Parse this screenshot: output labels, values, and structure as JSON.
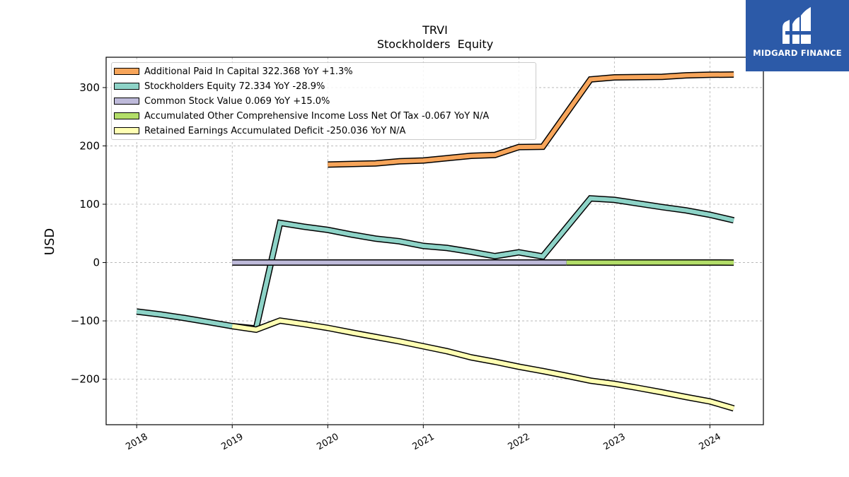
{
  "chart_data": {
    "type": "line",
    "title": "TRVI",
    "subtitle": "Stockholders  Equity",
    "ylabel": "USD",
    "xlabel": "",
    "xlim": [
      2017.68,
      2024.56
    ],
    "ylim": [
      -278,
      352
    ],
    "x_ticks": [
      2018,
      2019,
      2020,
      2021,
      2022,
      2023,
      2024
    ],
    "x_tick_labels": [
      "2018",
      "2019",
      "2020",
      "2021",
      "2022",
      "2023",
      "2024"
    ],
    "y_ticks": [
      -200,
      -100,
      0,
      100,
      200,
      300
    ],
    "y_tick_labels": [
      "−200",
      "−100",
      "0",
      "100",
      "200",
      "300"
    ],
    "grid": true,
    "legend_position": "top-left",
    "series": [
      {
        "name": "Additional Paid In Capital",
        "legend": "Additional Paid In Capital  322.368 YoY +1.3%",
        "color": "#f7a55a",
        "points": [
          [
            2020.0,
            168.0
          ],
          [
            2020.5,
            170.0
          ],
          [
            2020.75,
            173.5
          ],
          [
            2021.0,
            175.0
          ],
          [
            2021.25,
            179.0
          ],
          [
            2021.5,
            183.0
          ],
          [
            2021.75,
            184.5
          ],
          [
            2022.0,
            198.0
          ],
          [
            2022.25,
            198.5
          ],
          [
            2022.75,
            314.0
          ],
          [
            2023.0,
            317.5
          ],
          [
            2023.5,
            318.5
          ],
          [
            2023.75,
            321.0
          ],
          [
            2024.0,
            322.0
          ],
          [
            2024.25,
            322.368
          ]
        ]
      },
      {
        "name": "Stockholders Equity",
        "legend": "Stockholders Equity  72.334 YoY -28.9%",
        "color": "#8dd3c7",
        "points": [
          [
            2018.0,
            -84.0
          ],
          [
            2018.25,
            -89.0
          ],
          [
            2018.5,
            -95.0
          ],
          [
            2018.75,
            -102.0
          ],
          [
            2019.0,
            -109.0
          ],
          [
            2019.25,
            -113.0
          ],
          [
            2019.5,
            68.0
          ],
          [
            2019.75,
            61.5
          ],
          [
            2020.0,
            56.0
          ],
          [
            2020.25,
            48.0
          ],
          [
            2020.5,
            41.0
          ],
          [
            2020.75,
            36.5
          ],
          [
            2021.0,
            28.5
          ],
          [
            2021.25,
            25.0
          ],
          [
            2021.5,
            18.5
          ],
          [
            2021.75,
            11.0
          ],
          [
            2022.0,
            17.5
          ],
          [
            2022.25,
            10.5
          ],
          [
            2022.75,
            110.0
          ],
          [
            2023.0,
            107.5
          ],
          [
            2023.5,
            95.0
          ],
          [
            2023.75,
            89.5
          ],
          [
            2024.0,
            82.0
          ],
          [
            2024.25,
            72.334
          ]
        ]
      },
      {
        "name": "Common Stock Value",
        "legend": "Common Stock Value  0.069 YoY +15.0%",
        "color": "#bebada",
        "points": [
          [
            2019.0,
            0.06
          ],
          [
            2019.5,
            0.06
          ],
          [
            2020.0,
            0.06
          ],
          [
            2020.5,
            0.06
          ],
          [
            2021.0,
            0.06
          ],
          [
            2021.5,
            0.06
          ],
          [
            2022.0,
            0.06
          ],
          [
            2022.25,
            0.06
          ],
          [
            2022.5,
            0.06
          ]
        ]
      },
      {
        "name": "Accumulated Other Comprehensive Income Loss Net Of Tax",
        "legend": "Accumulated Other Comprehensive Income Loss Net Of Tax  -0.067 YoY N/A",
        "color": "#b3de69",
        "points": [
          [
            2022.5,
            0.0
          ],
          [
            2022.75,
            0.0
          ],
          [
            2023.0,
            0.0
          ],
          [
            2023.25,
            0.0
          ],
          [
            2023.5,
            0.0
          ],
          [
            2023.75,
            0.0
          ],
          [
            2024.0,
            0.0
          ],
          [
            2024.25,
            -0.067
          ]
        ]
      },
      {
        "name": "Retained Earnings Accumulated Deficit",
        "legend": "Retained Earnings Accumulated Deficit  -250.036 YoY N/A",
        "color": "#ffffb3",
        "points": [
          [
            2019.0,
            -109.0
          ],
          [
            2019.25,
            -115.0
          ],
          [
            2019.5,
            -99.5
          ],
          [
            2019.75,
            -105.5
          ],
          [
            2020.0,
            -112.0
          ],
          [
            2020.25,
            -120.0
          ],
          [
            2020.5,
            -127.5
          ],
          [
            2020.75,
            -135.0
          ],
          [
            2021.0,
            -143.5
          ],
          [
            2021.25,
            -152.0
          ],
          [
            2021.5,
            -162.5
          ],
          [
            2021.75,
            -170.0
          ],
          [
            2022.0,
            -178.5
          ],
          [
            2022.25,
            -186.0
          ],
          [
            2022.5,
            -194.0
          ],
          [
            2022.75,
            -202.5
          ],
          [
            2023.0,
            -208.0
          ],
          [
            2023.25,
            -215.0
          ],
          [
            2023.5,
            -222.5
          ],
          [
            2023.75,
            -230.5
          ],
          [
            2024.0,
            -238.0
          ],
          [
            2024.25,
            -250.036
          ]
        ]
      }
    ]
  },
  "logo": {
    "text": "MIDGARD FINANCE",
    "color": "#2c5aa8"
  }
}
